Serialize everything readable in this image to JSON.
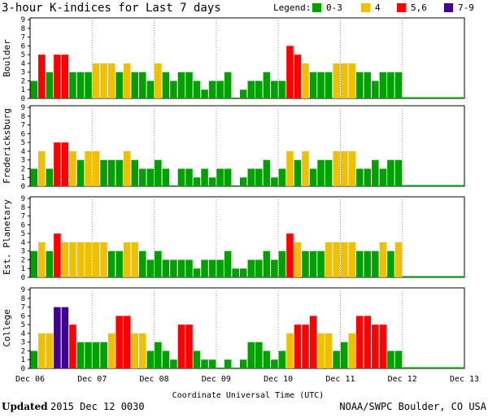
{
  "header": {
    "title": "3-hour K-indices for Last 7 days",
    "legend_label": "Legend:",
    "legend": [
      {
        "label": "0-3",
        "color": "#00a000"
      },
      {
        "label": "4",
        "color": "#f0c000"
      },
      {
        "label": "5,6",
        "color": "#ff0000"
      },
      {
        "label": "7-9",
        "color": "#400090"
      }
    ]
  },
  "chart_data": [
    {
      "type": "bar",
      "title": "Boulder",
      "ylim": [
        0,
        9
      ],
      "yticks": [
        "0",
        "1",
        "2",
        "3",
        "4",
        "5",
        "6",
        "7",
        "8",
        "9"
      ],
      "values": [
        2,
        5,
        3,
        5,
        5,
        3,
        3,
        3,
        4,
        4,
        4,
        3,
        4,
        3,
        3,
        2,
        4,
        3,
        2,
        3,
        3,
        2,
        1,
        2,
        2,
        3,
        0,
        1,
        2,
        2,
        3,
        2,
        2,
        6,
        5,
        4,
        3,
        3,
        3,
        4,
        4,
        4,
        3,
        3,
        2,
        3,
        3,
        3
      ]
    },
    {
      "type": "bar",
      "title": "Fredericksburg",
      "ylim": [
        0,
        9
      ],
      "yticks": [
        "0",
        "1",
        "2",
        "3",
        "4",
        "5",
        "6",
        "7",
        "8",
        "9"
      ],
      "values": [
        2,
        4,
        2,
        5,
        5,
        4,
        3,
        4,
        4,
        3,
        3,
        3,
        4,
        3,
        2,
        2,
        3,
        2,
        0,
        2,
        2,
        1,
        2,
        1,
        2,
        2,
        0,
        1,
        2,
        2,
        3,
        1,
        2,
        4,
        3,
        4,
        2,
        3,
        3,
        4,
        4,
        4,
        2,
        2,
        3,
        2,
        3,
        3
      ]
    },
    {
      "type": "bar",
      "title": "Est. Planetary",
      "ylim": [
        0,
        9
      ],
      "yticks": [
        "0",
        "1",
        "2",
        "3",
        "4",
        "5",
        "6",
        "7",
        "8",
        "9"
      ],
      "values": [
        3,
        4,
        3,
        5,
        4,
        4,
        4,
        4,
        4,
        4,
        3,
        3,
        4,
        4,
        3,
        2,
        3,
        2,
        2,
        2,
        2,
        1,
        2,
        2,
        2,
        3,
        1,
        1,
        2,
        2,
        3,
        2,
        3,
        5,
        4,
        3,
        3,
        3,
        4,
        4,
        4,
        4,
        3,
        3,
        3,
        4,
        3,
        4
      ]
    },
    {
      "type": "bar",
      "title": "College",
      "ylim": [
        0,
        9
      ],
      "yticks": [
        "0",
        "1",
        "2",
        "3",
        "4",
        "5",
        "6",
        "7",
        "8",
        "9"
      ],
      "values": [
        2,
        4,
        4,
        7,
        7,
        5,
        3,
        3,
        3,
        3,
        4,
        6,
        6,
        4,
        4,
        2,
        3,
        2,
        1,
        5,
        5,
        2,
        1,
        1,
        0,
        1,
        0,
        1,
        3,
        3,
        2,
        1,
        2,
        4,
        5,
        5,
        6,
        4,
        4,
        2,
        3,
        4,
        6,
        6,
        5,
        5,
        2,
        2
      ]
    }
  ],
  "x_axis": {
    "ticks": [
      "Dec 06",
      "Dec 07",
      "Dec 08",
      "Dec 09",
      "Dec 10",
      "Dec 11",
      "Dec 12",
      "Dec 13"
    ],
    "label": "Coordinate Universal Time (UTC)"
  },
  "footer": {
    "updated_label": "Updated",
    "updated_value": "2015 Dec 12 0030",
    "source": "NOAA/SWPC Boulder, CO USA"
  }
}
